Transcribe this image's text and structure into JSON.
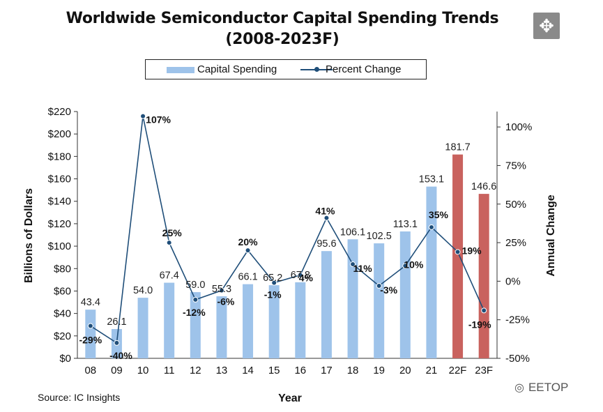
{
  "chart_data": {
    "type": "bar",
    "title": "Worldwide Semiconductor Capital Spending Trends",
    "subtitle": "(2008-2023F)",
    "categories": [
      "08",
      "09",
      "10",
      "11",
      "12",
      "13",
      "14",
      "15",
      "16",
      "17",
      "18",
      "19",
      "20",
      "21",
      "22F",
      "23F"
    ],
    "series": [
      {
        "name": "Capital Spending",
        "type": "bar",
        "axis": "left",
        "values": [
          43.4,
          26.1,
          54.0,
          67.4,
          59.0,
          55.3,
          66.1,
          65.2,
          67.8,
          95.6,
          106.1,
          102.5,
          113.1,
          153.1,
          181.7,
          146.6
        ],
        "labels": [
          "43.4",
          "26.1",
          "54.0",
          "67.4",
          "59.0",
          "55.3",
          "66.1",
          "65.2",
          "67.8",
          "95.6",
          "106.1",
          "102.5",
          "113.1",
          "153.1",
          "181.7",
          "146.6"
        ],
        "forecast": [
          false,
          false,
          false,
          false,
          false,
          false,
          false,
          false,
          false,
          false,
          false,
          false,
          false,
          false,
          true,
          true
        ]
      },
      {
        "name": "Percent Change",
        "type": "line",
        "axis": "right",
        "values": [
          -29,
          -40,
          107,
          25,
          -12,
          -6,
          20,
          -1,
          4,
          41,
          11,
          -3,
          10,
          35,
          19,
          -19
        ],
        "labels": [
          "-29%",
          "-40%",
          "107%",
          "25%",
          "-12%",
          "-6%",
          "20%",
          "-1%",
          "4%",
          "41%",
          "11%",
          "-3%",
          "10%",
          "35%",
          "19%",
          "-19%"
        ]
      }
    ],
    "xlabel": "Year",
    "ylabel": "Billions of Dollars",
    "y2label": "Annual Change",
    "ylim": [
      0,
      220
    ],
    "y2lim": [
      -50,
      110
    ],
    "yticks": [
      "$0",
      "$20",
      "$40",
      "$60",
      "$80",
      "$100",
      "$120",
      "$140",
      "$160",
      "$180",
      "$200",
      "$220"
    ],
    "y2ticks": [
      "-50%",
      "-25%",
      "0%",
      "25%",
      "50%",
      "75%",
      "100%"
    ],
    "legend": [
      "Capital Spending",
      "Percent Change"
    ],
    "legend_position": "top-center",
    "colors": {
      "actual": "#9ec3ea",
      "forecast": "#c9625e",
      "line": "#1f4e79"
    }
  },
  "source": "Source: IC Insights",
  "watermark": "EETOP",
  "move_icon": "move-arrows-icon"
}
